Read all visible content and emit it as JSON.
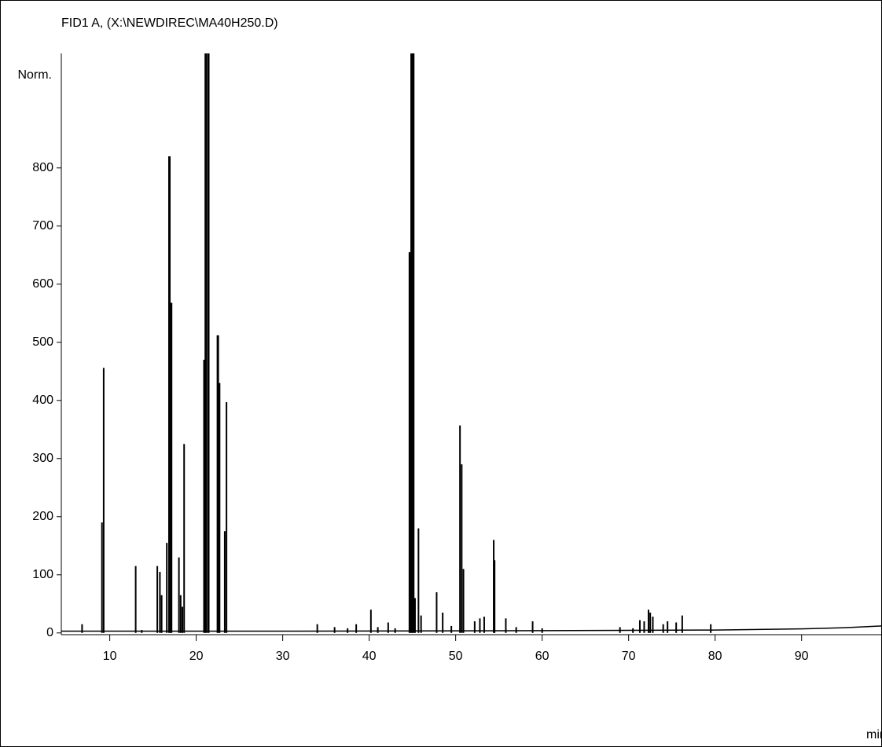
{
  "chart_data": {
    "type": "stem",
    "title": "FID1 A, (X:\\NEWDIREC\\MA40H250.D)",
    "x_label": "min",
    "y_label": "Norm.",
    "xlim": [
      4.4,
      99.3
    ],
    "ylim": [
      -3,
      997
    ],
    "xticks": [
      10,
      20,
      30,
      40,
      50,
      60,
      70,
      80,
      90
    ],
    "yticks": [
      0,
      100,
      200,
      300,
      400,
      500,
      600,
      700,
      800
    ],
    "color": "#000000",
    "baseline": {
      "x": [
        4.4,
        30,
        60,
        80,
        90,
        95,
        99.3
      ],
      "values": [
        3,
        3,
        4,
        5,
        7,
        9,
        12
      ]
    },
    "peaks": {
      "x": [
        6.8,
        9.1,
        9.3,
        13.0,
        13.7,
        15.5,
        15.8,
        16.0,
        16.6,
        16.9,
        17.1,
        18.0,
        18.2,
        18.4,
        18.6,
        20.9,
        21.1,
        21.4,
        22.5,
        22.7,
        23.3,
        23.5,
        34.0,
        36.0,
        37.5,
        38.5,
        40.2,
        41.0,
        42.2,
        43.0,
        44.7,
        44.9,
        45.1,
        45.3,
        45.7,
        46.0,
        47.8,
        48.5,
        49.5,
        50.5,
        50.7,
        50.9,
        52.2,
        52.8,
        53.3,
        54.4,
        54.5,
        55.8,
        57.0,
        58.9,
        60.0,
        69.0,
        70.5,
        71.3,
        71.8,
        72.3,
        72.5,
        72.8,
        74.0,
        74.5,
        75.5,
        76.2,
        79.5
      ],
      "values": [
        15,
        190,
        456,
        115,
        5,
        115,
        105,
        65,
        155,
        820,
        568,
        130,
        65,
        45,
        325,
        470,
        997,
        997,
        512,
        430,
        175,
        397,
        15,
        10,
        8,
        15,
        40,
        10,
        18,
        8,
        655,
        997,
        997,
        60,
        180,
        30,
        70,
        35,
        12,
        357,
        290,
        110,
        20,
        25,
        28,
        160,
        125,
        25,
        10,
        20,
        8,
        10,
        8,
        22,
        20,
        40,
        35,
        28,
        15,
        20,
        18,
        30,
        15
      ]
    }
  }
}
